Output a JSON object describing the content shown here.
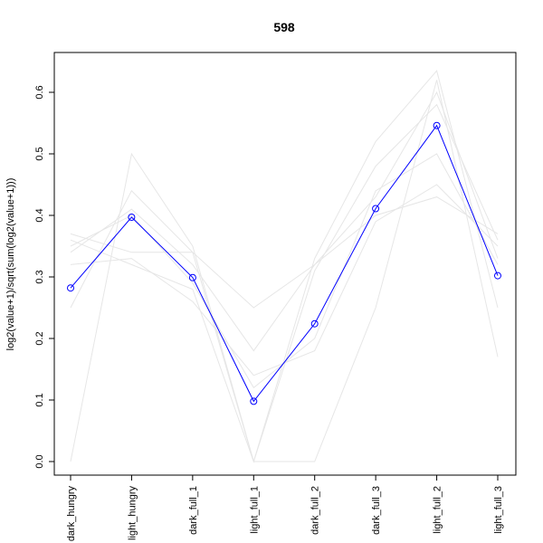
{
  "chart_data": {
    "type": "line",
    "title": "598",
    "xlabel": "",
    "ylabel": "log2(value+1)/sqrt(sum(log2(value+1)))",
    "categories": [
      "dark_hungry",
      "light_hungry",
      "dark_full_1",
      "light_full_1",
      "dark_full_2",
      "dark_full_3",
      "light_full_2",
      "light_full_3"
    ],
    "ylim": [
      0,
      0.6
    ],
    "yticks": [
      0.0,
      0.1,
      0.2,
      0.3,
      0.4,
      0.5,
      0.6
    ],
    "ytick_labels": [
      "0.0",
      "0.1",
      "0.2",
      "0.3",
      "0.4",
      "0.5",
      "0.6"
    ],
    "grid": false,
    "highlight_color": "#0000ff",
    "background_color": "#e6e6e6",
    "series": [
      {
        "values": [
          0.282,
          0.397,
          0.299,
          0.098,
          0.224,
          0.411,
          0.546,
          0.302
        ],
        "highlight": true
      },
      {
        "values": [
          0.0,
          0.5,
          0.35,
          0.0,
          0.33,
          0.52,
          0.635,
          0.25
        ]
      },
      {
        "values": [
          0.25,
          0.44,
          0.34,
          0.0,
          0.0,
          0.25,
          0.62,
          0.17
        ]
      },
      {
        "values": [
          0.34,
          0.41,
          0.32,
          0.18,
          0.32,
          0.43,
          0.6,
          0.33
        ]
      },
      {
        "values": [
          0.37,
          0.34,
          0.34,
          0.25,
          0.32,
          0.4,
          0.43,
          0.37
        ]
      },
      {
        "values": [
          0.32,
          0.33,
          0.26,
          0.14,
          0.18,
          0.39,
          0.45,
          0.35
        ]
      },
      {
        "values": [
          0.35,
          0.4,
          0.29,
          0.12,
          0.2,
          0.44,
          0.5,
          0.32
        ]
      },
      {
        "values": [
          0.36,
          0.32,
          0.28,
          0.0,
          0.31,
          0.48,
          0.58,
          0.36
        ]
      }
    ]
  }
}
